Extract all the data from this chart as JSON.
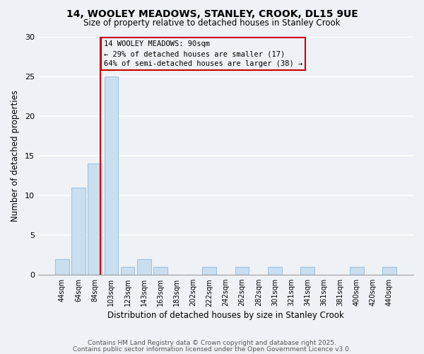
{
  "title1": "14, WOOLEY MEADOWS, STANLEY, CROOK, DL15 9UE",
  "title2": "Size of property relative to detached houses in Stanley Crook",
  "xlabel": "Distribution of detached houses by size in Stanley Crook",
  "ylabel": "Number of detached properties",
  "bar_labels": [
    "44sqm",
    "64sqm",
    "84sqm",
    "103sqm",
    "123sqm",
    "143sqm",
    "163sqm",
    "183sqm",
    "202sqm",
    "222sqm",
    "242sqm",
    "262sqm",
    "282sqm",
    "301sqm",
    "321sqm",
    "341sqm",
    "361sqm",
    "381sqm",
    "400sqm",
    "420sqm",
    "440sqm"
  ],
  "bar_values": [
    2,
    11,
    14,
    25,
    1,
    2,
    1,
    0,
    0,
    1,
    0,
    1,
    0,
    1,
    0,
    1,
    0,
    0,
    1,
    0,
    1
  ],
  "bar_color": "#c9dff0",
  "bar_edge_color": "#a0c4e0",
  "vline_x_index": 2.35,
  "vline_color": "#cc0000",
  "ylim": [
    0,
    30
  ],
  "yticks": [
    0,
    5,
    10,
    15,
    20,
    25,
    30
  ],
  "annotation_text": "14 WOOLEY MEADOWS: 90sqm\n← 29% of detached houses are smaller (17)\n64% of semi-detached houses are larger (38) →",
  "footnote1": "Contains HM Land Registry data © Crown copyright and database right 2025.",
  "footnote2": "Contains public sector information licensed under the Open Government Licence v3.0.",
  "background_color": "#eef2f7"
}
